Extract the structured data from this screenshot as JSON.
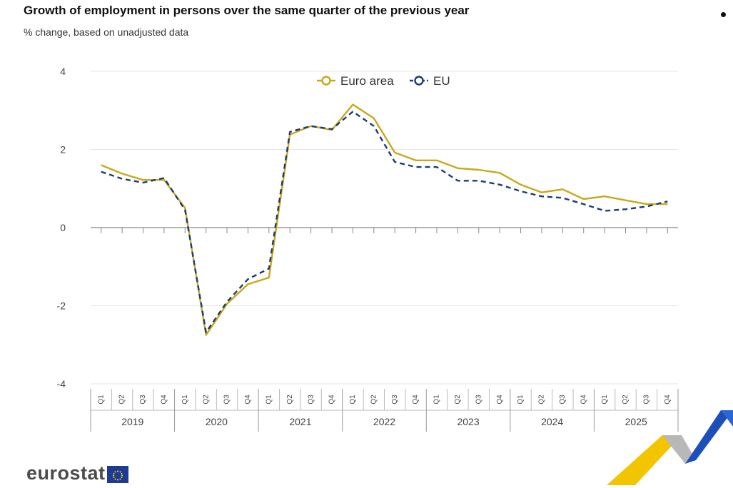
{
  "header": {
    "title": "Growth of employment in persons over the same quarter of the previous year",
    "subtitle": "% change, based on unadjusted data"
  },
  "brand": {
    "logo_text": "eurostat"
  },
  "colors": {
    "euro_area": "#c9a81a",
    "eu": "#1c3b78",
    "grid": "#e6e6e6",
    "axis": "#888888"
  },
  "chart_data": {
    "type": "line",
    "title": "Growth of employment in persons over the same quarter of the previous year",
    "subtitle": "% change, based on unadjusted data",
    "xlabel": "",
    "ylabel": "",
    "ylim": [
      -4,
      4
    ],
    "yticks": [
      "4",
      "2",
      "0",
      "-2",
      "-4"
    ],
    "grid": true,
    "legend_position": "top-center",
    "quarters": [
      "Q1",
      "Q2",
      "Q3",
      "Q4",
      "Q1",
      "Q2",
      "Q3",
      "Q4",
      "Q1",
      "Q2",
      "Q3",
      "Q4",
      "Q1",
      "Q2",
      "Q3",
      "Q4",
      "Q1",
      "Q2",
      "Q3",
      "Q4",
      "Q1",
      "Q2",
      "Q3",
      "Q4",
      "Q1",
      "Q2",
      "Q3",
      "Q4"
    ],
    "years": [
      "2019",
      "2020",
      "2021",
      "2022",
      "2023",
      "2024",
      "2025"
    ],
    "series": [
      {
        "name": "Euro area",
        "style": "solid",
        "values": [
          1.6,
          1.38,
          1.22,
          1.22,
          0.5,
          -2.75,
          -1.95,
          -1.45,
          -1.28,
          2.38,
          2.6,
          2.5,
          3.15,
          2.8,
          1.92,
          1.72,
          1.72,
          1.52,
          1.48,
          1.4,
          1.1,
          0.9,
          0.98,
          0.73,
          0.8,
          0.7,
          0.6,
          0.6
        ]
      },
      {
        "name": "EU",
        "style": "dashed",
        "values": [
          1.43,
          1.25,
          1.15,
          1.27,
          0.45,
          -2.68,
          -1.9,
          -1.32,
          -1.05,
          2.45,
          2.6,
          2.52,
          2.97,
          2.6,
          1.68,
          1.55,
          1.55,
          1.2,
          1.2,
          1.1,
          0.93,
          0.8,
          0.76,
          0.6,
          0.43,
          0.47,
          0.54,
          0.67
        ]
      }
    ]
  }
}
